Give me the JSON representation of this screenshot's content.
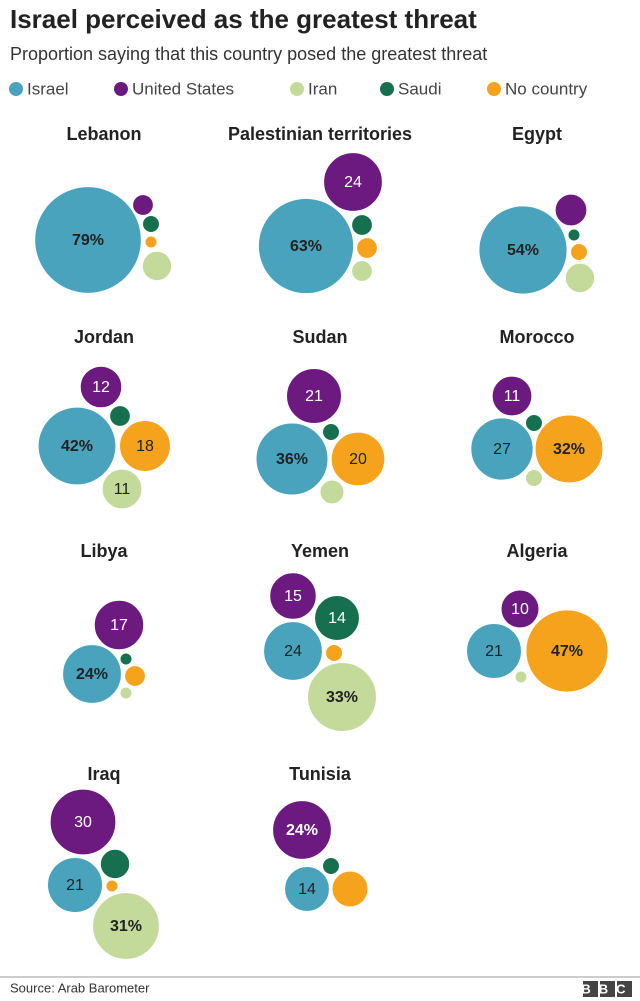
{
  "chart_data": {
    "type": "bubble",
    "title": "Israel perceived as the greatest threat",
    "subtitle": "Proportion saying that this country posed the greatest threat",
    "source": "Source: Arab Barometer",
    "brand": "BBC",
    "categories": [
      "Lebanon",
      "Palestinian territories",
      "Egypt",
      "Jordan",
      "Sudan",
      "Morocco",
      "Libya",
      "Yemen",
      "Algeria",
      "Iraq",
      "Tunisia"
    ],
    "series": [
      {
        "name": "Israel",
        "color": "#4aa3bd",
        "values": [
          79,
          63,
          54,
          42,
          36,
          27,
          24,
          24,
          21,
          21,
          14
        ],
        "value_labels": [
          "79%",
          "63%",
          "54%",
          "42%",
          "36%",
          "27",
          "24%",
          "24",
          "21",
          "21",
          "14"
        ]
      },
      {
        "name": "United States",
        "color": "#6c1a80",
        "values": [
          3,
          24,
          7,
          12,
          21,
          11,
          17,
          15,
          10,
          30,
          24
        ],
        "value_labels": [
          null,
          "24",
          null,
          "12",
          "21",
          "11",
          "17",
          "15",
          "10",
          "30",
          "24%"
        ]
      },
      {
        "name": "Iran",
        "color": "#c4da9b",
        "values": [
          6,
          3,
          6,
          11,
          4,
          2,
          1,
          33,
          1,
          31,
          0
        ],
        "value_labels": [
          null,
          null,
          null,
          "11",
          null,
          null,
          null,
          "33%",
          null,
          "31%",
          null
        ]
      },
      {
        "name": "Saudi",
        "color": "#16704f",
        "values": [
          2,
          3,
          1,
          3,
          2,
          2,
          1,
          14,
          0,
          6,
          2
        ],
        "value_labels": [
          null,
          null,
          null,
          null,
          null,
          null,
          null,
          "14",
          null,
          null,
          null
        ]
      },
      {
        "name": "No country",
        "color": "#f5a31d",
        "values": [
          1,
          3,
          2,
          18,
          20,
          32,
          3,
          2,
          47,
          1,
          9
        ],
        "value_labels": [
          null,
          null,
          null,
          "18",
          "20",
          "32%",
          null,
          null,
          "47%",
          null,
          null
        ]
      }
    ]
  }
}
